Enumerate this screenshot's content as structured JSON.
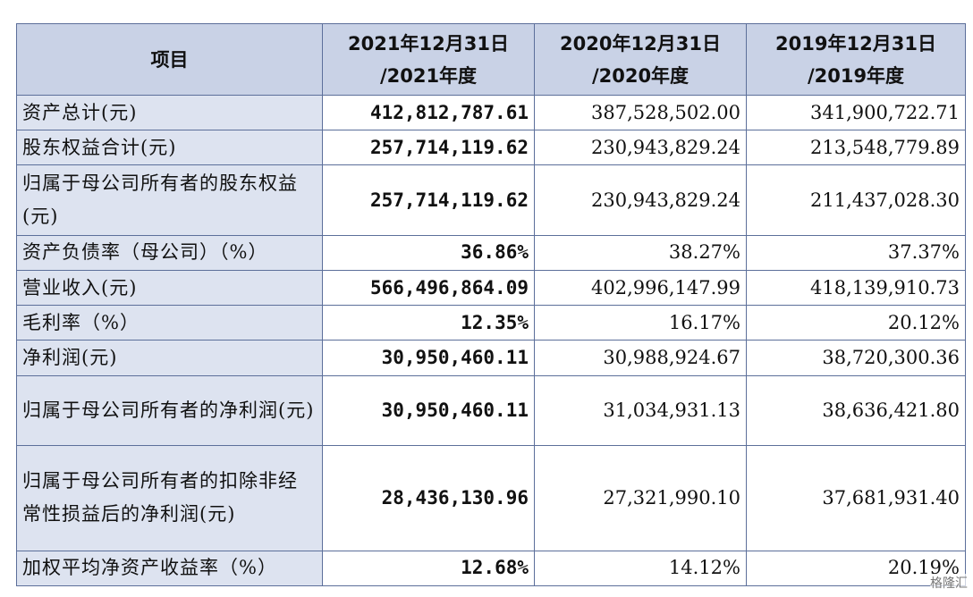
{
  "table": {
    "headers": [
      "项目",
      "2021年12月31日\n/2021年度",
      "2020年12月31日\n/2020年度",
      "2019年12月31日\n/2019年度"
    ],
    "rows": [
      {
        "label": "资产总计(元)",
        "v2021": "412,812,787.61",
        "v2020": "387,528,502.00",
        "v2019": "341,900,722.71"
      },
      {
        "label": "股东权益合计(元)",
        "v2021": "257,714,119.62",
        "v2020": "230,943,829.24",
        "v2019": "213,548,779.89"
      },
      {
        "label": "归属于母公司所有者的股东权益(元)",
        "v2021": "257,714,119.62",
        "v2020": "230,943,829.24",
        "v2019": "211,437,028.30"
      },
      {
        "label": "资产负债率（母公司）（%）",
        "v2021": "36.86%",
        "v2020": "38.27%",
        "v2019": "37.37%"
      },
      {
        "label": "营业收入(元)",
        "v2021": "566,496,864.09",
        "v2020": "402,996,147.99",
        "v2019": "418,139,910.73"
      },
      {
        "label": "毛利率（%）",
        "v2021": "12.35%",
        "v2020": "16.17%",
        "v2019": "20.12%"
      },
      {
        "label": "净利润(元)",
        "v2021": "30,950,460.11",
        "v2020": "30,988,924.67",
        "v2019": "38,720,300.36"
      },
      {
        "label": "归属于母公司所有者的净利润(元)",
        "v2021": "30,950,460.11",
        "v2020": "31,034,931.13",
        "v2019": "38,636,421.80"
      },
      {
        "label": "归属于母公司所有者的扣除非经常性损益后的净利润(元)",
        "v2021": "28,436,130.96",
        "v2020": "27,321,990.10",
        "v2019": "37,681,931.40"
      },
      {
        "label": "加权平均净资产收益率（%）",
        "v2021": "12.68%",
        "v2020": "14.12%",
        "v2019": "20.19%"
      }
    ]
  },
  "watermark": "格隆汇"
}
